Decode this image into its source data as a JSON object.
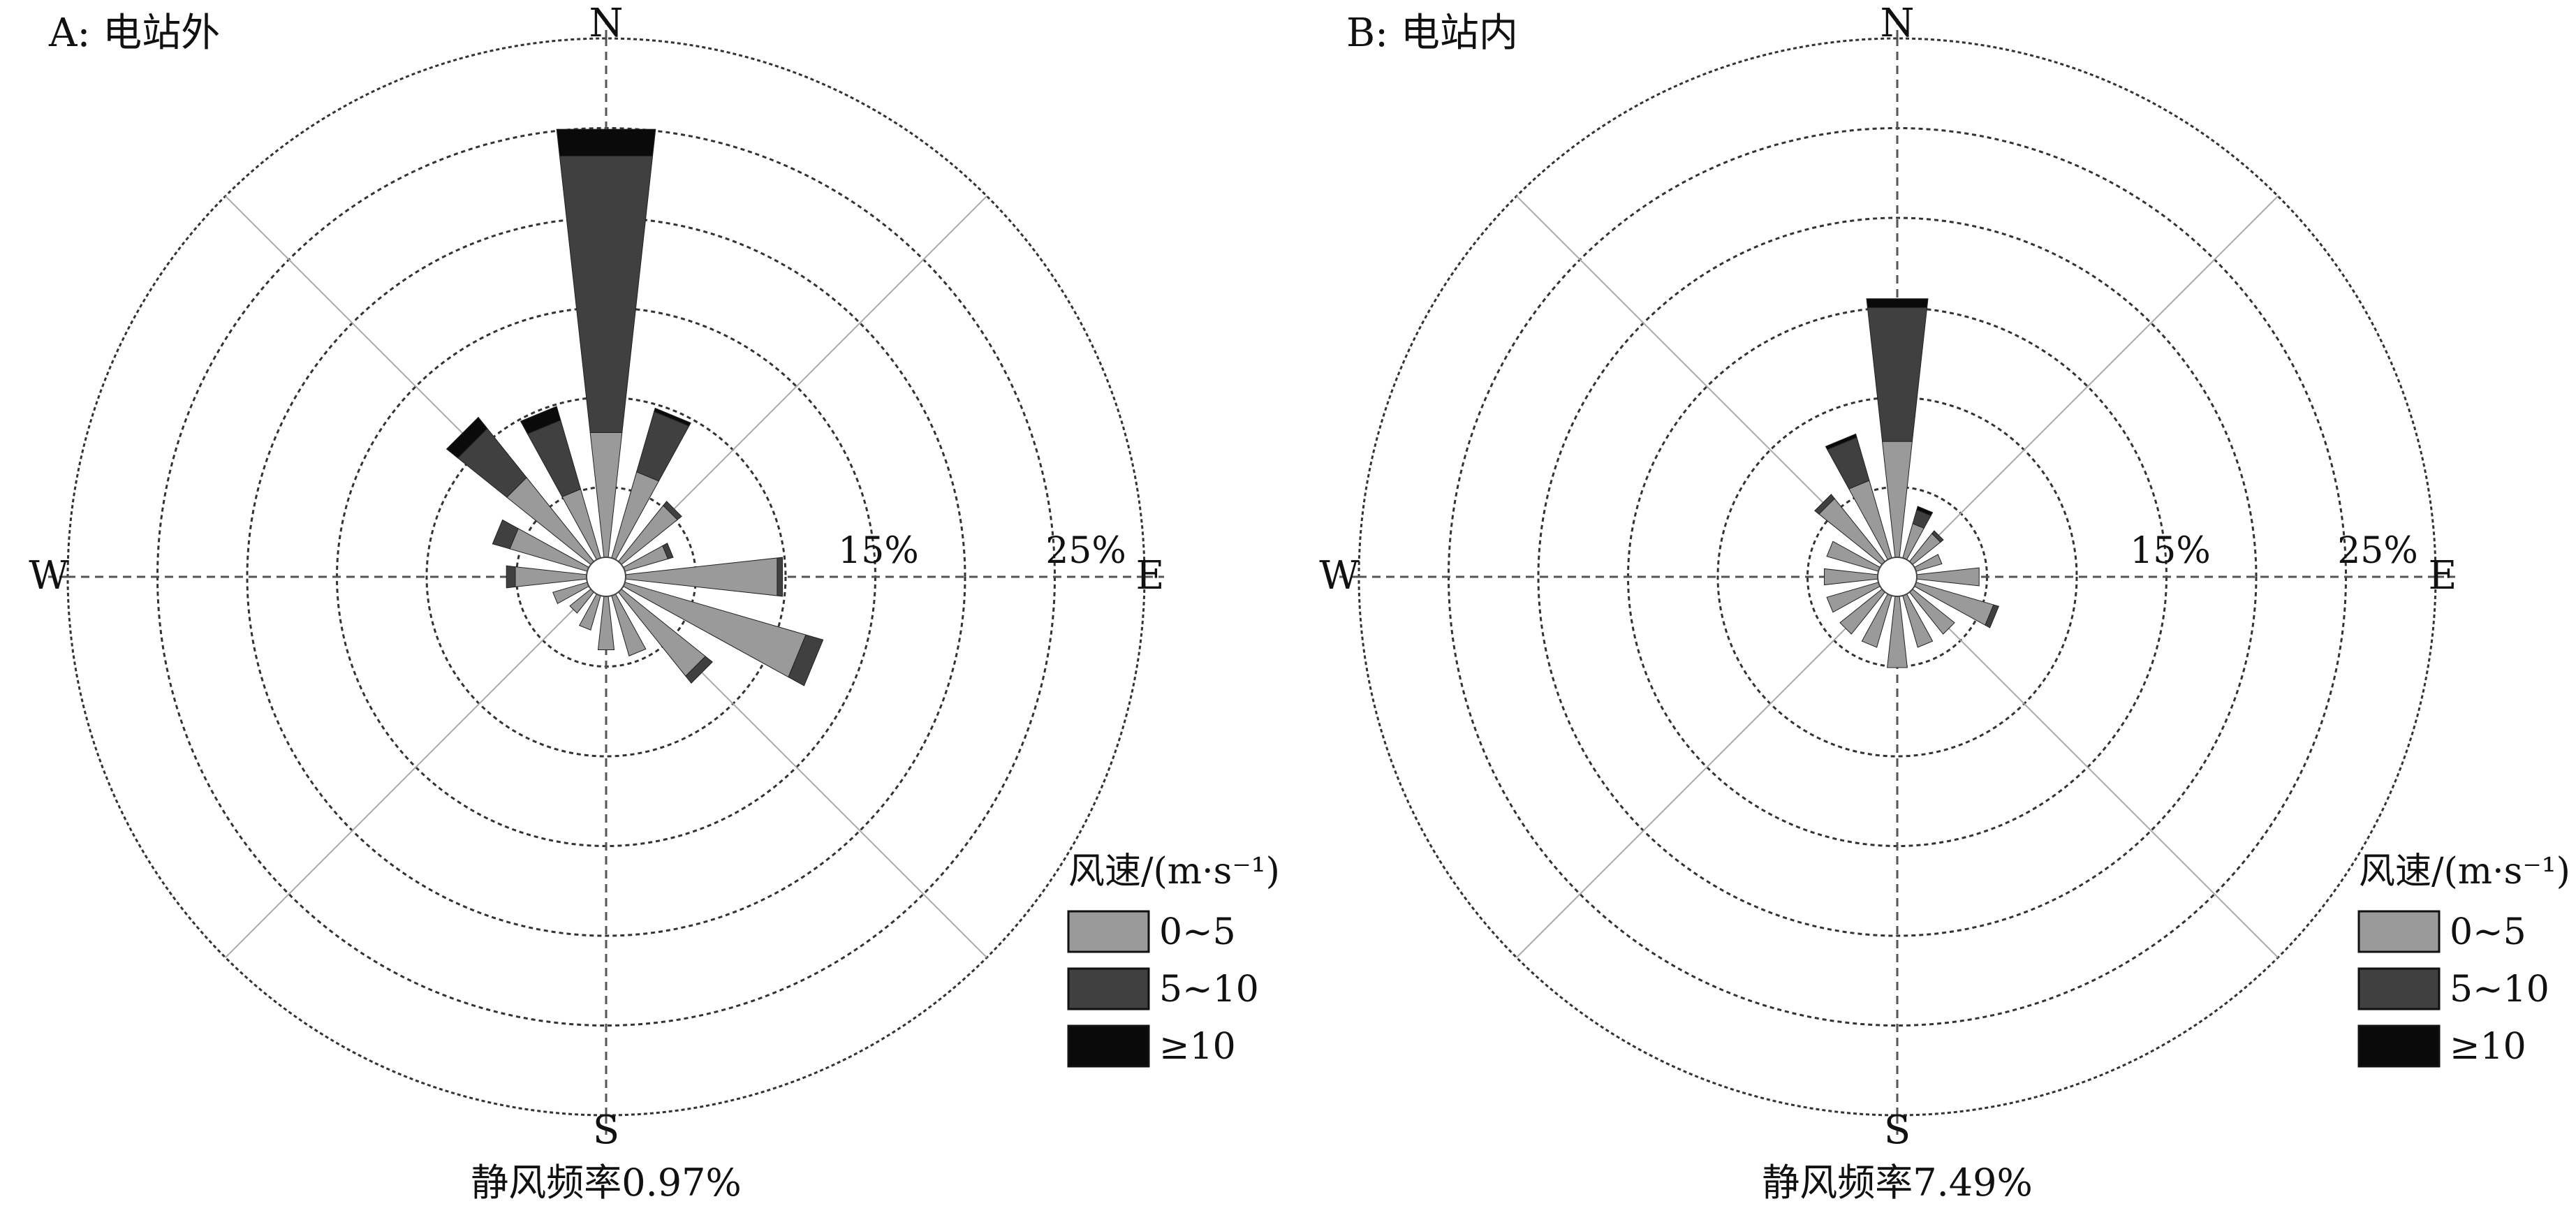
{
  "colors": {
    "speed_0_5": "#9a9a9a",
    "speed_5_10": "#404040",
    "speed_10_plus": "#0a0a0a",
    "ring": "#333333",
    "spoke": "#aaaaaa",
    "axis": "#555555"
  },
  "chart_data": [
    {
      "type": "wind-rose",
      "panel_title": "A: 电站外",
      "compass": {
        "n": "N",
        "e": "E",
        "s": "S",
        "w": "W"
      },
      "ring_labels": [
        "15%",
        "25%"
      ],
      "legend": {
        "title": "风速/(m·s⁻¹)",
        "items": [
          "0~5",
          "5~10",
          "≥10"
        ]
      },
      "calm_label": "静风频率0.97%",
      "rings": [
        5,
        10,
        15,
        20,
        25,
        30
      ],
      "radial_unit": "%",
      "directions": [
        "N",
        "NNE",
        "NE",
        "ENE",
        "E",
        "ESE",
        "SE",
        "SSE",
        "S",
        "SSW",
        "SW",
        "WSW",
        "W",
        "WNW",
        "NW",
        "NNW"
      ],
      "series": [
        {
          "name": "0~5",
          "values": [
            7.0,
            5.0,
            4.0,
            2.5,
            8.5,
            10.5,
            6.0,
            3.5,
            3.0,
            2.0,
            1.5,
            2.0,
            4.0,
            4.5,
            6.0,
            4.0
          ]
        },
        {
          "name": "5~10",
          "values": [
            15.5,
            3.5,
            0.3,
            0.3,
            0.3,
            1.0,
            0.5,
            0,
            0,
            0,
            0,
            0,
            0.5,
            1.0,
            3.5,
            4.0
          ]
        },
        {
          "name": "≥10",
          "values": [
            1.5,
            0.2,
            0,
            0,
            0,
            0,
            0,
            0,
            0,
            0,
            0,
            0,
            0,
            0,
            0.8,
            0.8
          ]
        }
      ]
    },
    {
      "type": "wind-rose",
      "panel_title": "B: 电站内",
      "compass": {
        "n": "N",
        "e": "E",
        "s": "S",
        "w": "W"
      },
      "ring_labels": [
        "15%",
        "25%"
      ],
      "legend": {
        "title": "风速/(m·s⁻¹)",
        "items": [
          "0~5",
          "5~10",
          "≥10"
        ]
      },
      "calm_label": "静风频率7.49%",
      "rings": [
        5,
        10,
        15,
        20,
        25,
        30
      ],
      "radial_unit": "%",
      "directions": [
        "N",
        "NNE",
        "NE",
        "ENE",
        "E",
        "ESE",
        "SE",
        "SSE",
        "S",
        "SSW",
        "SW",
        "WSW",
        "W",
        "WNW",
        "NW",
        "NNW"
      ],
      "series": [
        {
          "name": "0~5",
          "values": [
            6.5,
            2.0,
            2.0,
            1.5,
            3.5,
            4.5,
            3.0,
            3.0,
            4.0,
            3.0,
            3.0,
            3.0,
            3.0,
            3.0,
            4.5,
            4.5
          ]
        },
        {
          "name": "5~10",
          "values": [
            7.5,
            0.8,
            0.2,
            0,
            0,
            0.3,
            0,
            0,
            0,
            0,
            0,
            0,
            0,
            0,
            0.3,
            2.5
          ]
        },
        {
          "name": "≥10",
          "values": [
            0.5,
            0.2,
            0,
            0,
            0,
            0,
            0,
            0,
            0,
            0,
            0,
            0,
            0,
            0,
            0,
            0.2
          ]
        }
      ]
    }
  ]
}
